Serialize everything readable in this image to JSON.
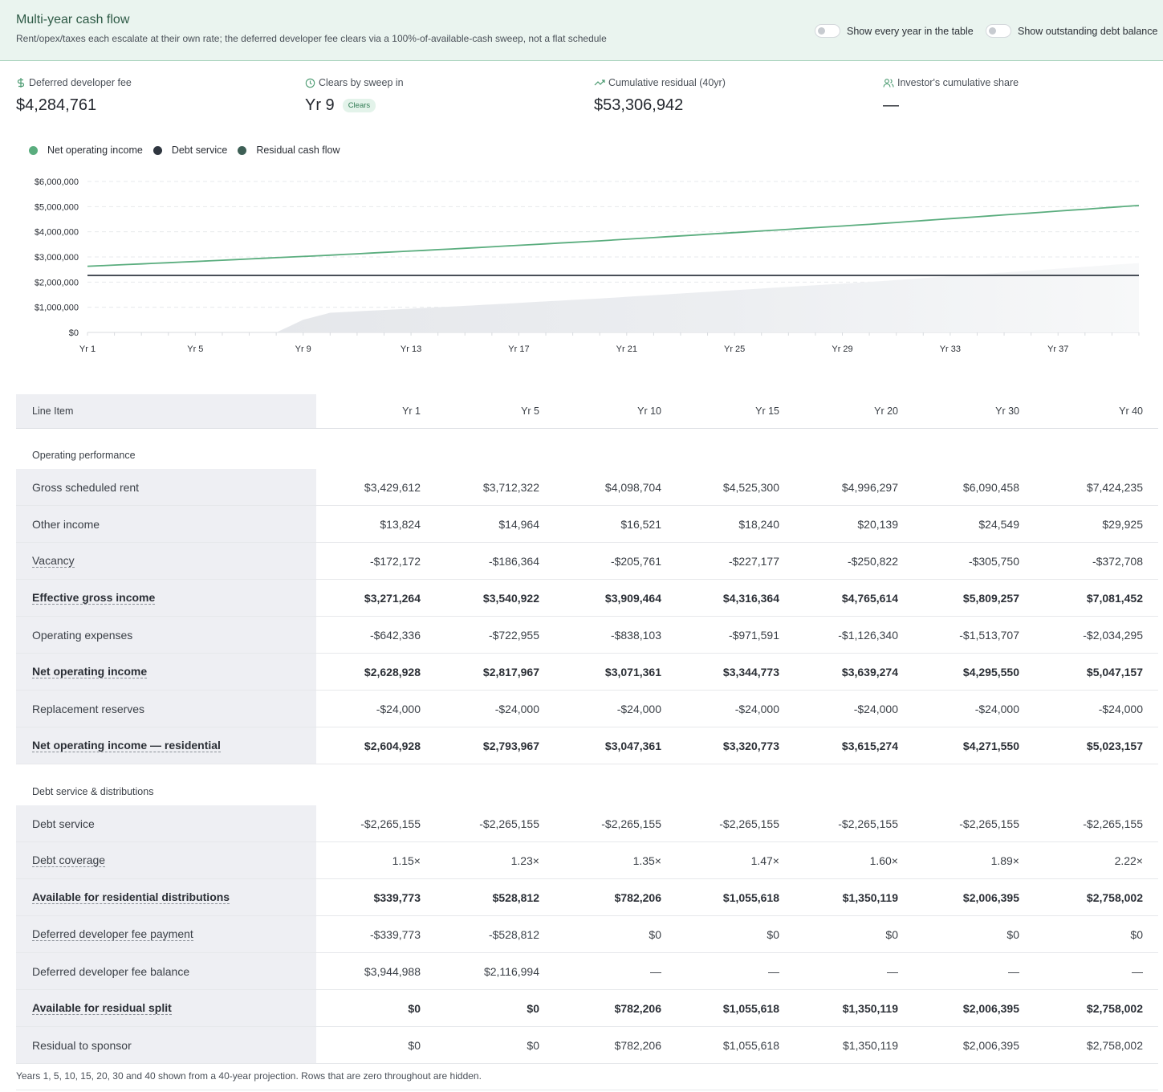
{
  "header": {
    "title": "Multi-year cash flow",
    "subtitle": "Rent/opex/taxes each escalate at their own rate; the deferred developer fee clears via a 100%-of-available-cash sweep, not a flat schedule",
    "toggle_every_year": "Show every year in the table",
    "toggle_debt_balance": "Show outstanding debt balance"
  },
  "kpis": {
    "deferred_fee": {
      "label": "Deferred developer fee",
      "value": "$4,284,761",
      "icon": "dollar-icon"
    },
    "clears": {
      "label": "Clears by sweep in",
      "value": "Yr 9",
      "badge": "Clears",
      "icon": "clock-icon"
    },
    "residual": {
      "label": "Cumulative residual (40yr)",
      "value": "$53,306,942",
      "icon": "trending-up-icon"
    },
    "investor": {
      "label": "Investor's cumulative share",
      "value": "—",
      "icon": "users-icon"
    }
  },
  "colors": {
    "noi": "#5aad7e",
    "debt": "#2f3640",
    "residual": "#3d5f55",
    "area": "#e4e6ea"
  },
  "chart_data": {
    "type": "line",
    "x_tick_labels": [
      "Yr 1",
      "Yr 5",
      "Yr 9",
      "Yr 13",
      "Yr 17",
      "Yr 21",
      "Yr 25",
      "Yr 29",
      "Yr 33",
      "Yr 37"
    ],
    "y_tick_labels": [
      "$0",
      "$1,000,000",
      "$2,000,000",
      "$3,000,000",
      "$4,000,000",
      "$5,000,000",
      "$6,000,000"
    ],
    "ylim": [
      0,
      6000000
    ],
    "xlim": [
      1,
      40
    ],
    "grid": true,
    "legend_position": "top-left",
    "series": [
      {
        "name": "Net operating income",
        "x": [
          1,
          5,
          10,
          15,
          20,
          30,
          40
        ],
        "values": [
          2628928,
          2817967,
          3071361,
          3344773,
          3639274,
          4295550,
          5047157
        ]
      },
      {
        "name": "Debt service",
        "x": [
          1,
          40
        ],
        "values": [
          2265155,
          2265155
        ]
      },
      {
        "name": "Residual cash flow",
        "x": [
          1,
          8,
          9,
          10,
          15,
          20,
          30,
          40
        ],
        "values": [
          0,
          0,
          500000,
          782206,
          1055618,
          1350119,
          2006395,
          2758002
        ]
      }
    ]
  },
  "table": {
    "label_header": "Line Item",
    "years": [
      "Yr 1",
      "Yr 5",
      "Yr 10",
      "Yr 15",
      "Yr 20",
      "Yr 30",
      "Yr 40"
    ],
    "sections": [
      {
        "title": "Operating performance",
        "rows": [
          {
            "label": "Gross scheduled rent",
            "bold": false,
            "underline": false,
            "values": [
              "$3,429,612",
              "$3,712,322",
              "$4,098,704",
              "$4,525,300",
              "$4,996,297",
              "$6,090,458",
              "$7,424,235"
            ]
          },
          {
            "label": "Other income",
            "bold": false,
            "underline": false,
            "values": [
              "$13,824",
              "$14,964",
              "$16,521",
              "$18,240",
              "$20,139",
              "$24,549",
              "$29,925"
            ]
          },
          {
            "label": "Vacancy",
            "bold": false,
            "underline": true,
            "values": [
              "-$172,172",
              "-$186,364",
              "-$205,761",
              "-$227,177",
              "-$250,822",
              "-$305,750",
              "-$372,708"
            ]
          },
          {
            "label": "Effective gross income",
            "bold": true,
            "underline": true,
            "values": [
              "$3,271,264",
              "$3,540,922",
              "$3,909,464",
              "$4,316,364",
              "$4,765,614",
              "$5,809,257",
              "$7,081,452"
            ]
          },
          {
            "label": "Operating expenses",
            "bold": false,
            "underline": false,
            "values": [
              "-$642,336",
              "-$722,955",
              "-$838,103",
              "-$971,591",
              "-$1,126,340",
              "-$1,513,707",
              "-$2,034,295"
            ]
          },
          {
            "label": "Net operating income",
            "bold": true,
            "underline": true,
            "values": [
              "$2,628,928",
              "$2,817,967",
              "$3,071,361",
              "$3,344,773",
              "$3,639,274",
              "$4,295,550",
              "$5,047,157"
            ]
          },
          {
            "label": "Replacement reserves",
            "bold": false,
            "underline": false,
            "values": [
              "-$24,000",
              "-$24,000",
              "-$24,000",
              "-$24,000",
              "-$24,000",
              "-$24,000",
              "-$24,000"
            ]
          },
          {
            "label": "Net operating income — residential",
            "bold": true,
            "underline": true,
            "values": [
              "$2,604,928",
              "$2,793,967",
              "$3,047,361",
              "$3,320,773",
              "$3,615,274",
              "$4,271,550",
              "$5,023,157"
            ]
          }
        ]
      },
      {
        "title": "Debt service & distributions",
        "rows": [
          {
            "label": "Debt service",
            "bold": false,
            "underline": false,
            "values": [
              "-$2,265,155",
              "-$2,265,155",
              "-$2,265,155",
              "-$2,265,155",
              "-$2,265,155",
              "-$2,265,155",
              "-$2,265,155"
            ]
          },
          {
            "label": "Debt coverage",
            "bold": false,
            "underline": true,
            "values": [
              "1.15×",
              "1.23×",
              "1.35×",
              "1.47×",
              "1.60×",
              "1.89×",
              "2.22×"
            ]
          },
          {
            "label": "Available for residential distributions",
            "bold": true,
            "underline": true,
            "values": [
              "$339,773",
              "$528,812",
              "$782,206",
              "$1,055,618",
              "$1,350,119",
              "$2,006,395",
              "$2,758,002"
            ]
          },
          {
            "label": "Deferred developer fee payment",
            "bold": false,
            "underline": true,
            "values": [
              "-$339,773",
              "-$528,812",
              "$0",
              "$0",
              "$0",
              "$0",
              "$0"
            ]
          },
          {
            "label": "Deferred developer fee balance",
            "bold": false,
            "underline": false,
            "values": [
              "$3,944,988",
              "$2,116,994",
              "—",
              "—",
              "—",
              "—",
              "—"
            ]
          },
          {
            "label": "Available for residual split",
            "bold": true,
            "underline": true,
            "values": [
              "$0",
              "$0",
              "$782,206",
              "$1,055,618",
              "$1,350,119",
              "$2,006,395",
              "$2,758,002"
            ]
          },
          {
            "label": "Residual to sponsor",
            "bold": false,
            "underline": false,
            "values": [
              "$0",
              "$0",
              "$782,206",
              "$1,055,618",
              "$1,350,119",
              "$2,006,395",
              "$2,758,002"
            ]
          }
        ]
      }
    ]
  },
  "footnote": "Years 1, 5, 10, 15, 20, 30 and 40 shown from a 40-year projection. Rows that are zero throughout are hidden."
}
